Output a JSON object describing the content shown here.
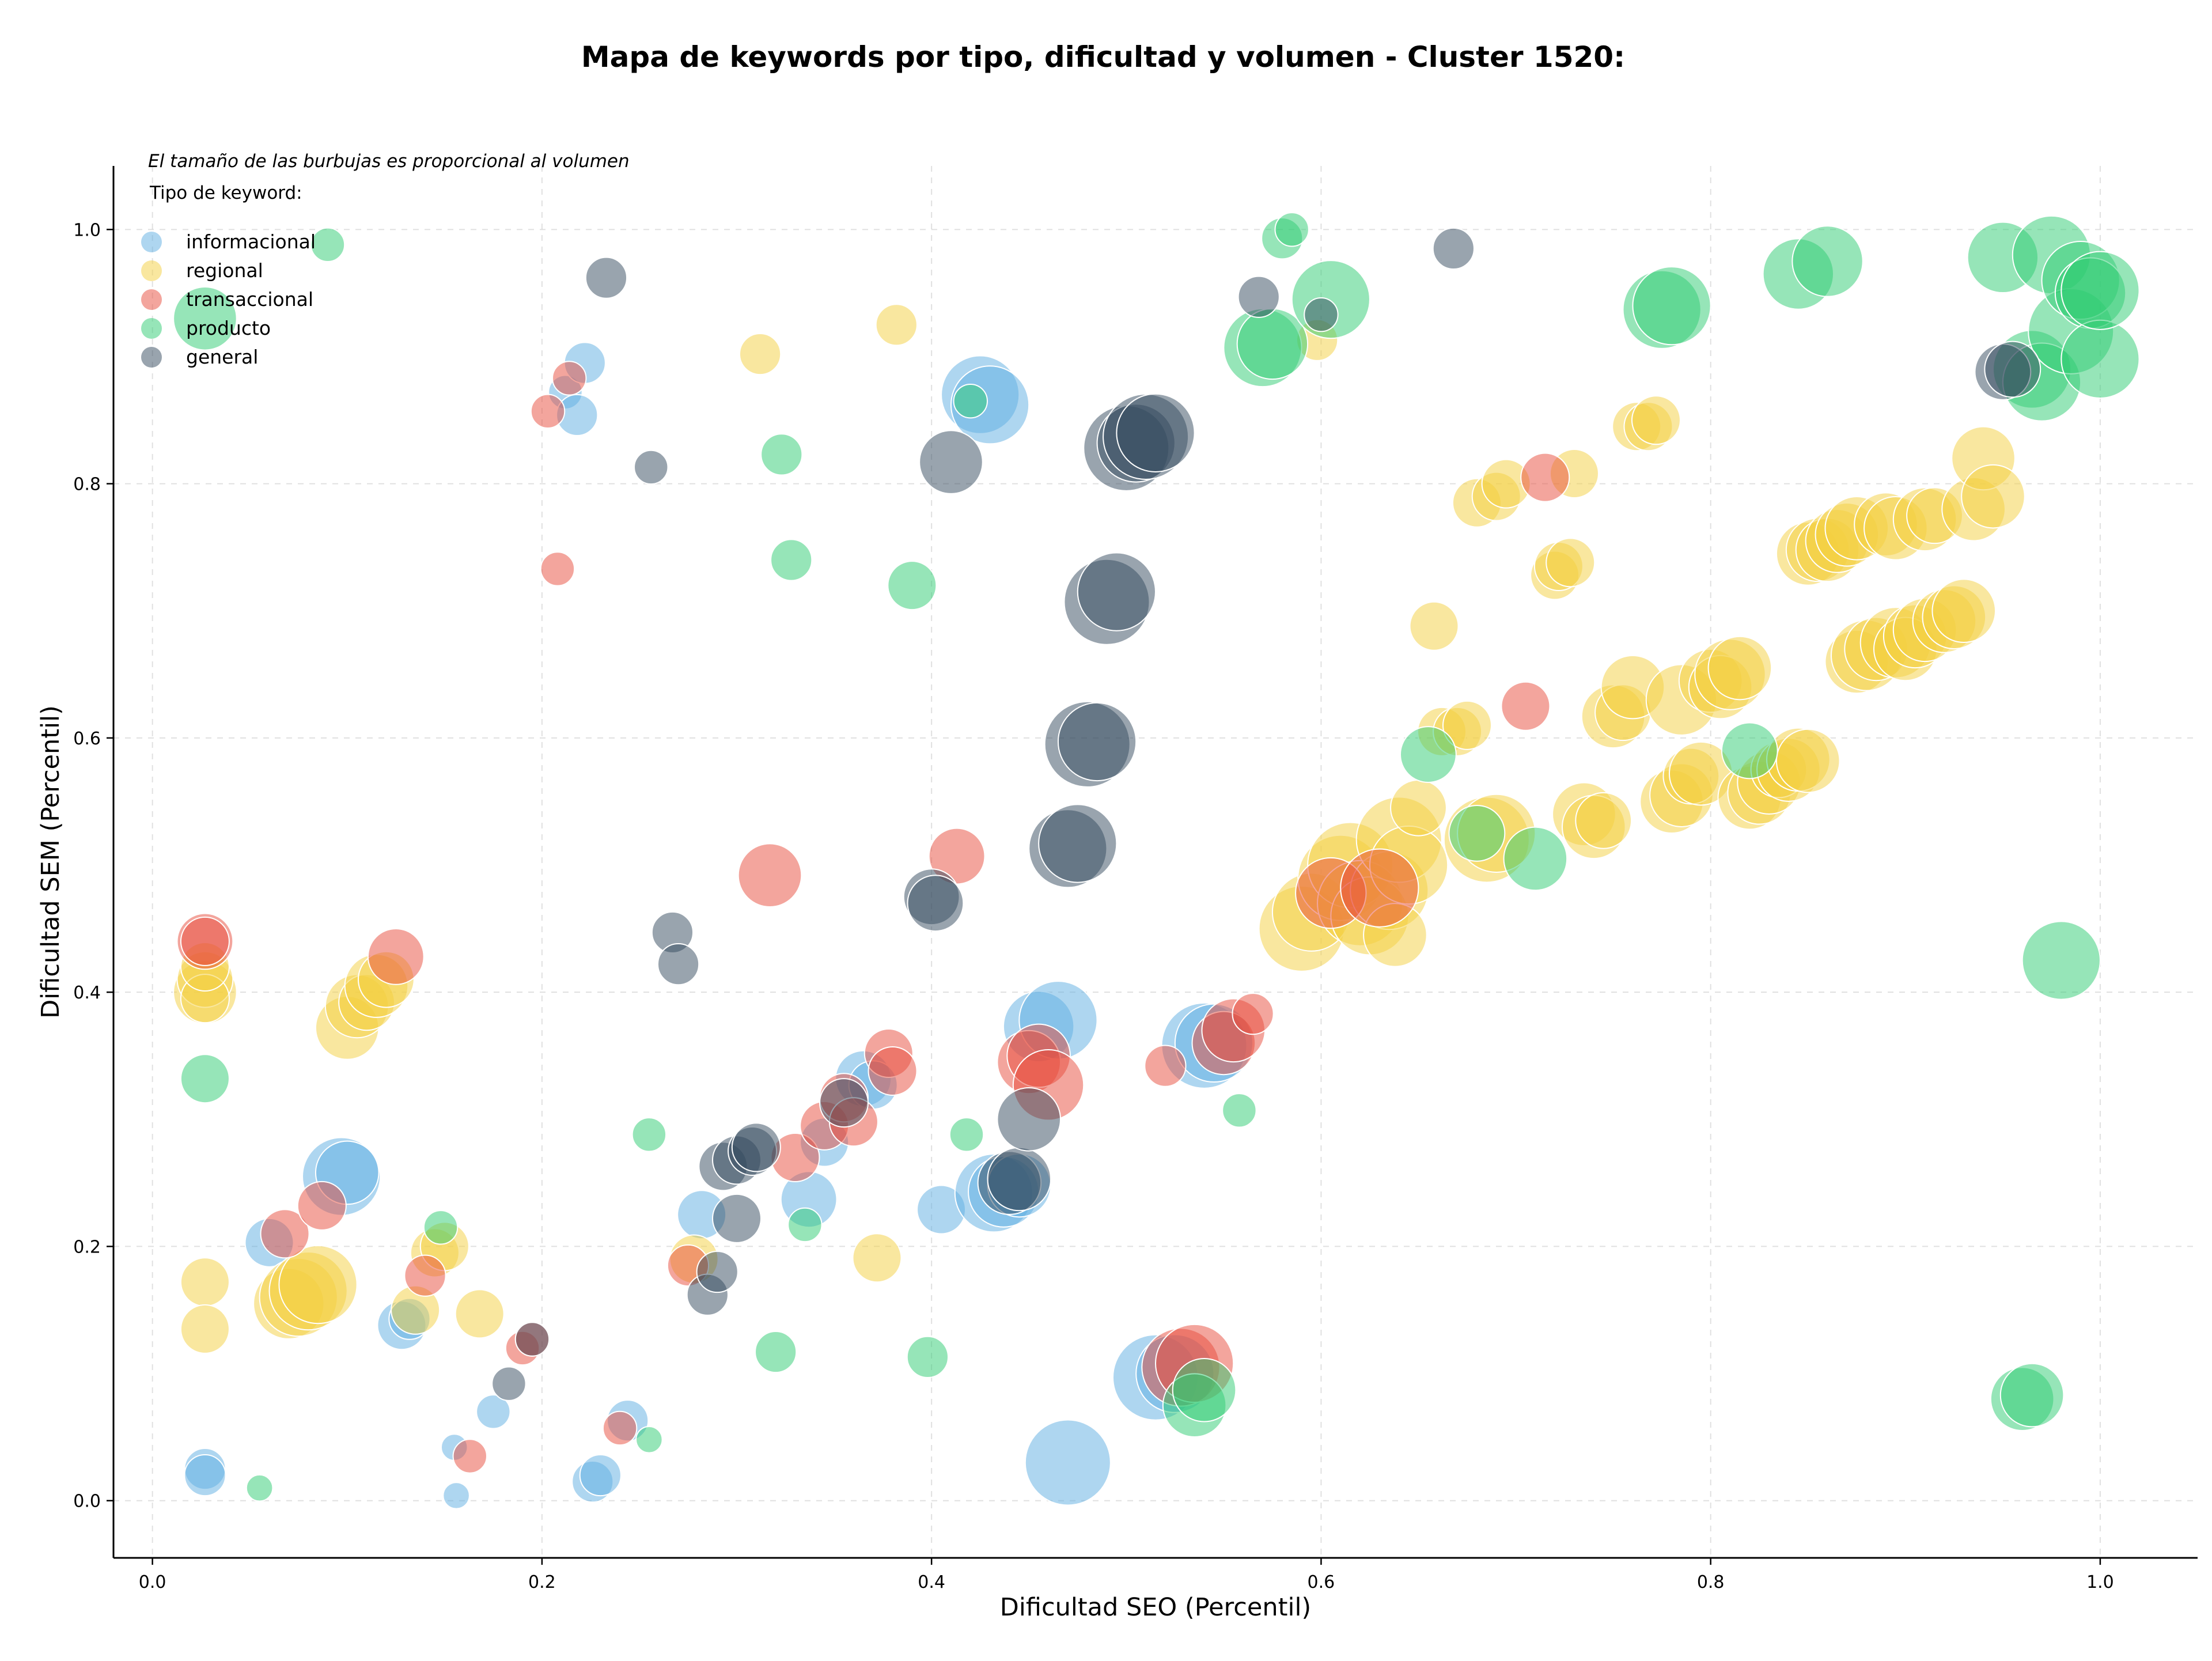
{
  "chart_data": {
    "type": "scatter",
    "title": "Mapa de keywords por tipo, dificultad y volumen - Cluster 1520:",
    "xlabel": "Dificultad SEO (Percentil)",
    "ylabel": "Dificultad SEM (Percentil)",
    "xlim": [
      -0.02,
      1.05
    ],
    "ylim": [
      -0.045,
      1.05
    ],
    "xticks": [
      "0.0",
      "0.2",
      "0.4",
      "0.6",
      "0.8",
      "1.0"
    ],
    "yticks": [
      "0.0",
      "0.2",
      "0.4",
      "0.6",
      "0.8",
      "1.0"
    ],
    "grid": true,
    "legend_placement": "top-left",
    "legend_title": "Tipo de keyword:",
    "size_note": "El tamaño de las burbujas es proporcional al volumen",
    "series": [
      {
        "name": "informacional",
        "color": "#5DADE2",
        "points": [
          [
            0.027,
            0.025,
            4
          ],
          [
            0.027,
            0.02,
            4
          ],
          [
            0.06,
            0.203,
            5
          ],
          [
            0.097,
            0.255,
            9
          ],
          [
            0.1,
            0.258,
            7
          ],
          [
            0.128,
            0.138,
            5
          ],
          [
            0.132,
            0.143,
            4
          ],
          [
            0.155,
            0.042,
            2
          ],
          [
            0.156,
            0.004,
            2
          ],
          [
            0.175,
            0.07,
            3
          ],
          [
            0.212,
            0.872,
            3
          ],
          [
            0.218,
            0.854,
            4
          ],
          [
            0.222,
            0.895,
            4
          ],
          [
            0.226,
            0.015,
            4
          ],
          [
            0.23,
            0.02,
            4
          ],
          [
            0.244,
            0.063,
            4
          ],
          [
            0.282,
            0.225,
            5
          ],
          [
            0.337,
            0.237,
            6
          ],
          [
            0.345,
            0.282,
            5
          ],
          [
            0.365,
            0.332,
            6
          ],
          [
            0.37,
            0.327,
            5
          ],
          [
            0.405,
            0.229,
            5
          ],
          [
            0.425,
            0.87,
            9
          ],
          [
            0.43,
            0.862,
            9
          ],
          [
            0.432,
            0.242,
            9
          ],
          [
            0.437,
            0.243,
            8
          ],
          [
            0.445,
            0.248,
            7
          ],
          [
            0.455,
            0.373,
            8
          ],
          [
            0.465,
            0.378,
            9
          ],
          [
            0.47,
            0.03,
            10
          ],
          [
            0.515,
            0.097,
            10
          ],
          [
            0.525,
            0.1,
            9
          ],
          [
            0.54,
            0.358,
            10
          ],
          [
            0.545,
            0.36,
            9
          ]
        ]
      },
      {
        "name": "regional",
        "color": "#F4D03F",
        "points": [
          [
            0.027,
            0.4,
            7
          ],
          [
            0.027,
            0.41,
            6
          ],
          [
            0.027,
            0.395,
            5
          ],
          [
            0.027,
            0.42,
            5
          ],
          [
            0.027,
            0.172,
            5
          ],
          [
            0.027,
            0.135,
            5
          ],
          [
            0.07,
            0.155,
            8
          ],
          [
            0.075,
            0.16,
            9
          ],
          [
            0.08,
            0.165,
            9
          ],
          [
            0.085,
            0.17,
            9
          ],
          [
            0.1,
            0.372,
            7
          ],
          [
            0.105,
            0.389,
            7
          ],
          [
            0.11,
            0.392,
            6
          ],
          [
            0.115,
            0.405,
            7
          ],
          [
            0.12,
            0.41,
            6
          ],
          [
            0.135,
            0.15,
            5
          ],
          [
            0.145,
            0.195,
            5
          ],
          [
            0.15,
            0.2,
            5
          ],
          [
            0.168,
            0.147,
            5
          ],
          [
            0.278,
            0.19,
            5
          ],
          [
            0.312,
            0.902,
            4
          ],
          [
            0.372,
            0.191,
            5
          ],
          [
            0.382,
            0.925,
            4
          ],
          [
            0.59,
            0.45,
            10
          ],
          [
            0.595,
            0.463,
            9
          ],
          [
            0.598,
            0.913,
            4
          ],
          [
            0.61,
            0.49,
            10
          ],
          [
            0.615,
            0.5,
            10
          ],
          [
            0.62,
            0.47,
            10
          ],
          [
            0.625,
            0.46,
            9
          ],
          [
            0.635,
            0.48,
            9
          ],
          [
            0.638,
            0.445,
            7
          ],
          [
            0.64,
            0.52,
            10
          ],
          [
            0.645,
            0.5,
            9
          ],
          [
            0.65,
            0.545,
            6
          ],
          [
            0.658,
            0.688,
            5
          ],
          [
            0.662,
            0.605,
            5
          ],
          [
            0.67,
            0.605,
            5
          ],
          [
            0.675,
            0.61,
            5
          ],
          [
            0.685,
            0.52,
            10
          ],
          [
            0.69,
            0.525,
            9
          ],
          [
            0.68,
            0.785,
            5
          ],
          [
            0.69,
            0.79,
            5
          ],
          [
            0.695,
            0.8,
            5
          ],
          [
            0.72,
            0.728,
            5
          ],
          [
            0.722,
            0.735,
            5
          ],
          [
            0.728,
            0.738,
            5
          ],
          [
            0.73,
            0.808,
            5
          ],
          [
            0.735,
            0.54,
            7
          ],
          [
            0.74,
            0.53,
            7
          ],
          [
            0.745,
            0.535,
            6
          ],
          [
            0.75,
            0.617,
            7
          ],
          [
            0.755,
            0.62,
            6
          ],
          [
            0.76,
            0.64,
            7
          ],
          [
            0.762,
            0.845,
            5
          ],
          [
            0.768,
            0.845,
            5
          ],
          [
            0.772,
            0.85,
            5
          ],
          [
            0.78,
            0.55,
            7
          ],
          [
            0.785,
            0.555,
            7
          ],
          [
            0.785,
            0.63,
            8
          ],
          [
            0.79,
            0.57,
            6
          ],
          [
            0.795,
            0.572,
            7
          ],
          [
            0.8,
            0.645,
            7
          ],
          [
            0.805,
            0.64,
            7
          ],
          [
            0.81,
            0.65,
            8
          ],
          [
            0.815,
            0.655,
            7
          ],
          [
            0.82,
            0.553,
            7
          ],
          [
            0.825,
            0.557,
            7
          ],
          [
            0.83,
            0.565,
            7
          ],
          [
            0.835,
            0.575,
            6
          ],
          [
            0.84,
            0.575,
            7
          ],
          [
            0.845,
            0.583,
            7
          ],
          [
            0.85,
            0.582,
            7
          ],
          [
            0.85,
            0.745,
            7
          ],
          [
            0.855,
            0.748,
            7
          ],
          [
            0.86,
            0.748,
            7
          ],
          [
            0.865,
            0.755,
            7
          ],
          [
            0.87,
            0.76,
            7
          ],
          [
            0.875,
            0.765,
            7
          ],
          [
            0.875,
            0.66,
            7
          ],
          [
            0.88,
            0.665,
            8
          ],
          [
            0.885,
            0.67,
            7
          ],
          [
            0.89,
            0.768,
            7
          ],
          [
            0.895,
            0.765,
            7
          ],
          [
            0.895,
            0.675,
            8
          ],
          [
            0.9,
            0.67,
            7
          ],
          [
            0.905,
            0.68,
            7
          ],
          [
            0.91,
            0.685,
            7
          ],
          [
            0.91,
            0.772,
            7
          ],
          [
            0.915,
            0.775,
            6
          ],
          [
            0.92,
            0.692,
            7
          ],
          [
            0.925,
            0.695,
            7
          ],
          [
            0.93,
            0.7,
            7
          ],
          [
            0.935,
            0.78,
            7
          ],
          [
            0.94,
            0.82,
            7
          ],
          [
            0.945,
            0.79,
            7
          ]
        ]
      },
      {
        "name": "transaccional",
        "color": "#E74C3C",
        "points": [
          [
            0.027,
            0.44,
            6
          ],
          [
            0.027,
            0.44,
            5
          ],
          [
            0.068,
            0.21,
            5
          ],
          [
            0.087,
            0.232,
            5
          ],
          [
            0.125,
            0.428,
            6
          ],
          [
            0.14,
            0.177,
            4
          ],
          [
            0.163,
            0.035,
            3
          ],
          [
            0.19,
            0.12,
            3
          ],
          [
            0.195,
            0.127,
            3
          ],
          [
            0.203,
            0.857,
            3
          ],
          [
            0.208,
            0.733,
            3
          ],
          [
            0.214,
            0.883,
            3
          ],
          [
            0.24,
            0.057,
            3
          ],
          [
            0.275,
            0.185,
            4
          ],
          [
            0.317,
            0.492,
            7
          ],
          [
            0.33,
            0.27,
            5
          ],
          [
            0.345,
            0.295,
            5
          ],
          [
            0.355,
            0.317,
            5
          ],
          [
            0.36,
            0.298,
            5
          ],
          [
            0.378,
            0.352,
            5
          ],
          [
            0.38,
            0.338,
            5
          ],
          [
            0.413,
            0.507,
            6
          ],
          [
            0.45,
            0.345,
            7
          ],
          [
            0.455,
            0.35,
            7
          ],
          [
            0.46,
            0.327,
            8
          ],
          [
            0.52,
            0.342,
            4
          ],
          [
            0.528,
            0.105,
            9
          ],
          [
            0.535,
            0.108,
            9
          ],
          [
            0.55,
            0.36,
            7
          ],
          [
            0.555,
            0.37,
            7
          ],
          [
            0.565,
            0.383,
            4
          ],
          [
            0.605,
            0.478,
            8
          ],
          [
            0.63,
            0.482,
            9
          ],
          [
            0.705,
            0.625,
            5
          ],
          [
            0.715,
            0.805,
            5
          ]
        ]
      },
      {
        "name": "producto",
        "color": "#2ECC71",
        "points": [
          [
            0.027,
            0.93,
            7
          ],
          [
            0.027,
            0.332,
            5
          ],
          [
            0.055,
            0.01,
            2
          ],
          [
            0.09,
            0.988,
            3
          ],
          [
            0.148,
            0.215,
            3
          ],
          [
            0.255,
            0.288,
            3
          ],
          [
            0.255,
            0.048,
            2
          ],
          [
            0.32,
            0.117,
            4
          ],
          [
            0.323,
            0.823,
            4
          ],
          [
            0.328,
            0.74,
            4
          ],
          [
            0.335,
            0.217,
            3
          ],
          [
            0.39,
            0.72,
            5
          ],
          [
            0.398,
            0.113,
            4
          ],
          [
            0.418,
            0.288,
            3
          ],
          [
            0.42,
            0.865,
            3
          ],
          [
            0.535,
            0.075,
            7
          ],
          [
            0.54,
            0.087,
            7
          ],
          [
            0.558,
            0.307,
            3
          ],
          [
            0.57,
            0.907,
            9
          ],
          [
            0.575,
            0.91,
            8
          ],
          [
            0.58,
            0.993,
            4
          ],
          [
            0.585,
            1.0,
            3
          ],
          [
            0.605,
            0.945,
            9
          ],
          [
            0.655,
            0.587,
            6
          ],
          [
            0.68,
            0.525,
            6
          ],
          [
            0.71,
            0.505,
            7
          ],
          [
            0.775,
            0.937,
            9
          ],
          [
            0.78,
            0.94,
            9
          ],
          [
            0.82,
            0.59,
            6
          ],
          [
            0.845,
            0.965,
            8
          ],
          [
            0.86,
            0.975,
            8
          ],
          [
            0.95,
            0.978,
            8
          ],
          [
            0.96,
            0.08,
            7
          ],
          [
            0.965,
            0.083,
            7
          ],
          [
            0.965,
            0.89,
            9
          ],
          [
            0.97,
            0.88,
            9
          ],
          [
            0.975,
            0.98,
            9
          ],
          [
            0.98,
            0.425,
            9
          ],
          [
            0.985,
            0.92,
            10
          ],
          [
            0.99,
            0.96,
            9
          ],
          [
            0.995,
            0.95,
            8
          ],
          [
            1.0,
            0.898,
            9
          ],
          [
            1.0,
            0.952,
            9
          ]
        ]
      },
      {
        "name": "general",
        "color": "#34495E",
        "points": [
          [
            0.183,
            0.092,
            3
          ],
          [
            0.195,
            0.127,
            3
          ],
          [
            0.233,
            0.962,
            4
          ],
          [
            0.256,
            0.813,
            3
          ],
          [
            0.267,
            0.447,
            4
          ],
          [
            0.27,
            0.422,
            4
          ],
          [
            0.285,
            0.162,
            4
          ],
          [
            0.29,
            0.18,
            4
          ],
          [
            0.293,
            0.263,
            5
          ],
          [
            0.3,
            0.222,
            5
          ],
          [
            0.3,
            0.268,
            5
          ],
          [
            0.308,
            0.275,
            5
          ],
          [
            0.31,
            0.278,
            5
          ],
          [
            0.355,
            0.313,
            5
          ],
          [
            0.4,
            0.475,
            6
          ],
          [
            0.402,
            0.47,
            6
          ],
          [
            0.41,
            0.817,
            7
          ],
          [
            0.44,
            0.25,
            7
          ],
          [
            0.445,
            0.253,
            7
          ],
          [
            0.45,
            0.3,
            7
          ],
          [
            0.47,
            0.513,
            9
          ],
          [
            0.475,
            0.517,
            9
          ],
          [
            0.48,
            0.595,
            10
          ],
          [
            0.485,
            0.597,
            9
          ],
          [
            0.49,
            0.707,
            10
          ],
          [
            0.495,
            0.715,
            9
          ],
          [
            0.5,
            0.828,
            10
          ],
          [
            0.505,
            0.832,
            9
          ],
          [
            0.51,
            0.837,
            10
          ],
          [
            0.515,
            0.84,
            9
          ],
          [
            0.568,
            0.947,
            4
          ],
          [
            0.6,
            0.933,
            3
          ],
          [
            0.668,
            0.985,
            4
          ],
          [
            0.95,
            0.888,
            6
          ],
          [
            0.955,
            0.89,
            6
          ]
        ]
      }
    ]
  }
}
